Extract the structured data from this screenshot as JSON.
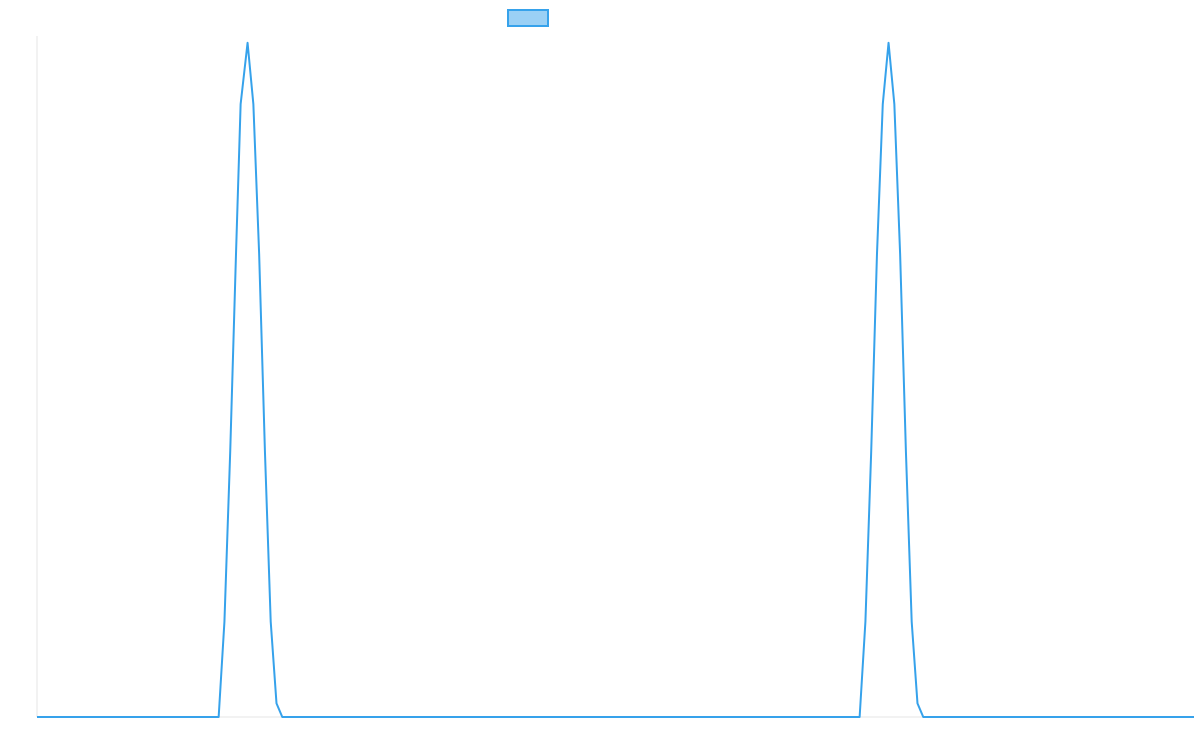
{
  "chart_data": {
    "type": "line",
    "title": "",
    "xlabel": "",
    "ylabel": "",
    "legend": {
      "placement": "top-center",
      "show_text": false
    },
    "grid": false,
    "xlim": [
      0,
      100
    ],
    "ylim": [
      0,
      1
    ],
    "series": [
      {
        "color": "#36a2eb",
        "fill_color": "#9ad0f5",
        "x": [
          0,
          15.7,
          16.2,
          16.7,
          17.2,
          17.6,
          18.2,
          18.7,
          19.2,
          19.7,
          20.2,
          20.7,
          21.2,
          21.7,
          70.6,
          71.1,
          71.6,
          72.1,
          72.6,
          73.1,
          73.6,
          74.1,
          74.6,
          75.1,
          75.6,
          76.1,
          76.6,
          100
        ],
        "y": [
          0,
          0,
          0.14,
          0.39,
          0.68,
          0.9,
          0.99,
          0.9,
          0.68,
          0.39,
          0.14,
          0.02,
          0,
          0,
          0,
          0,
          0.14,
          0.39,
          0.68,
          0.9,
          0.99,
          0.9,
          0.68,
          0.39,
          0.14,
          0.02,
          0,
          0
        ]
      }
    ]
  }
}
